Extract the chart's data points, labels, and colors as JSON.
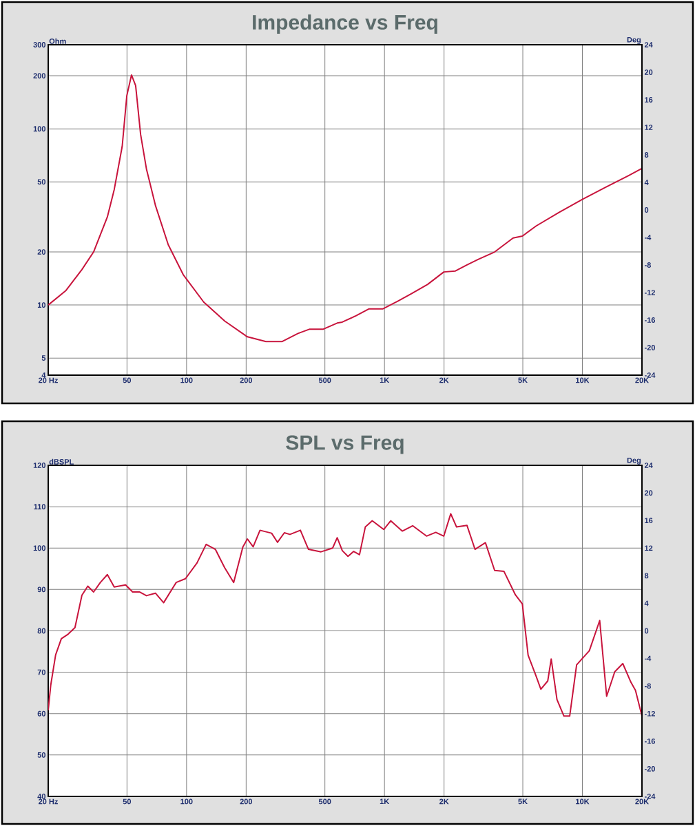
{
  "chart_data": [
    {
      "type": "line",
      "title": "Impedance vs Freq",
      "ylabel": "Ohm",
      "y2label": "Deg",
      "log": "xy",
      "grid": true,
      "xlim": [
        20,
        20000
      ],
      "ylim": [
        4,
        300
      ],
      "y2lim": [
        -24,
        24
      ],
      "xticks": [
        {
          "value": 20,
          "label": "20 Hz"
        },
        50,
        100,
        200,
        500,
        {
          "value": 1000,
          "label": "1K"
        },
        {
          "value": 2000,
          "label": "2K"
        },
        {
          "value": 5000,
          "label": "5K"
        },
        {
          "value": 10000,
          "label": "10K"
        },
        {
          "value": 20000,
          "label": "20K"
        }
      ],
      "yticks": [
        4,
        5,
        10,
        20,
        50,
        100,
        200,
        300
      ],
      "y2ticks": [
        -24,
        -20,
        -16,
        -12,
        -8,
        -4,
        0,
        4,
        8,
        12,
        16,
        20,
        24
      ],
      "x": [
        20,
        24.6,
        29.6,
        33.9,
        39.8,
        43.1,
        47.3,
        49.9,
        52.7,
        55.3,
        58.6,
        62.7,
        69.7,
        80.8,
        96.1,
        122,
        156,
        203,
        252,
        303,
        366,
        419,
        491,
        577,
        612,
        719,
        833,
        979,
        1166,
        1369,
        1653,
        1994,
        2282,
        2610,
        2985,
        3603,
        4467,
        4973,
        5842,
        7643,
        10000,
        13083,
        17120,
        20000
      ],
      "series": [
        {
          "color": "#c8143c",
          "values": [
            10,
            12.1,
            15.9,
            20,
            31.6,
            45.2,
            79.6,
            154,
            202,
            176,
            92.8,
            59.2,
            36.6,
            22,
            14.9,
            10.4,
            8.1,
            6.6,
            6.2,
            6.2,
            6.9,
            7.3,
            7.3,
            7.9,
            8.0,
            8.7,
            9.5,
            9.5,
            10.5,
            11.6,
            13.1,
            15.4,
            15.6,
            16.9,
            18.2,
            20,
            24,
            24.6,
            28.1,
            33.6,
            39.8,
            46.6,
            54.3,
            59.6
          ]
        }
      ]
    },
    {
      "type": "line",
      "title": "SPL vs Freq",
      "ylabel": "dBSPL",
      "y2label": "Deg",
      "log": "x",
      "grid": true,
      "xlim": [
        20,
        20000
      ],
      "ylim": [
        40,
        120
      ],
      "y2lim": [
        -24,
        24
      ],
      "xticks": [
        {
          "value": 20,
          "label": "20 Hz"
        },
        50,
        100,
        200,
        500,
        {
          "value": 1000,
          "label": "1K"
        },
        {
          "value": 2000,
          "label": "2K"
        },
        {
          "value": 5000,
          "label": "5K"
        },
        {
          "value": 10000,
          "label": "10K"
        },
        {
          "value": 20000,
          "label": "20K"
        }
      ],
      "yticks": [
        40,
        50,
        60,
        70,
        80,
        90,
        100,
        110,
        120
      ],
      "y2ticks": [
        -24,
        -20,
        -16,
        -12,
        -8,
        -4,
        0,
        4,
        8,
        12,
        16,
        20,
        24
      ],
      "x": [
        20,
        20.6,
        21.8,
        23.3,
        25.2,
        27.3,
        29.6,
        31.7,
        33.9,
        36.7,
        39.8,
        43.1,
        49.2,
        53.4,
        57.8,
        62.7,
        69.7,
        76.6,
        88.7,
        98.7,
        112.9,
        125.6,
        139.8,
        155.6,
        173,
        192.6,
        203,
        217,
        235,
        269,
        288,
        312,
        333,
        376,
        413,
        478,
        547,
        577,
        612,
        654,
        699,
        748,
        800,
        867,
        992,
        1075,
        1230,
        1388,
        1631,
        1816,
        1994,
        2162,
        2313,
        2610,
        2867,
        3236,
        3603,
        4012,
        4587,
        4973,
        5318,
        5842,
        6166,
        6683,
        6959,
        7441,
        8066,
        8627,
        9350,
        10840,
        12230,
        13260,
        14570,
        16000,
        17580,
        18550,
        20000
      ],
      "series": [
        {
          "color": "#c8143c",
          "values": [
            60.8,
            66.9,
            74.2,
            78.1,
            79.2,
            80.8,
            88.6,
            90.8,
            89.4,
            91.7,
            93.6,
            90.6,
            91.1,
            89.4,
            89.4,
            88.5,
            89.1,
            86.8,
            91.7,
            92.6,
            96.4,
            100.9,
            99.7,
            95.3,
            91.7,
            100.3,
            102.2,
            100.3,
            104.3,
            103.6,
            101.4,
            103.7,
            103.3,
            104.3,
            99.7,
            99.1,
            100,
            102.5,
            99.4,
            98,
            99.2,
            98.4,
            105.1,
            106.6,
            104.5,
            106.6,
            104.1,
            105.4,
            102.9,
            103.8,
            102.9,
            108.3,
            105.1,
            105.5,
            99.7,
            101.3,
            94.6,
            94.4,
            88.7,
            86.5,
            74.1,
            69,
            65.9,
            67.9,
            73.2,
            63.4,
            59.4,
            59.4,
            71.8,
            75.2,
            82.5,
            64.2,
            70.1,
            72.1,
            67.6,
            65.6,
            59.4
          ]
        }
      ]
    }
  ]
}
